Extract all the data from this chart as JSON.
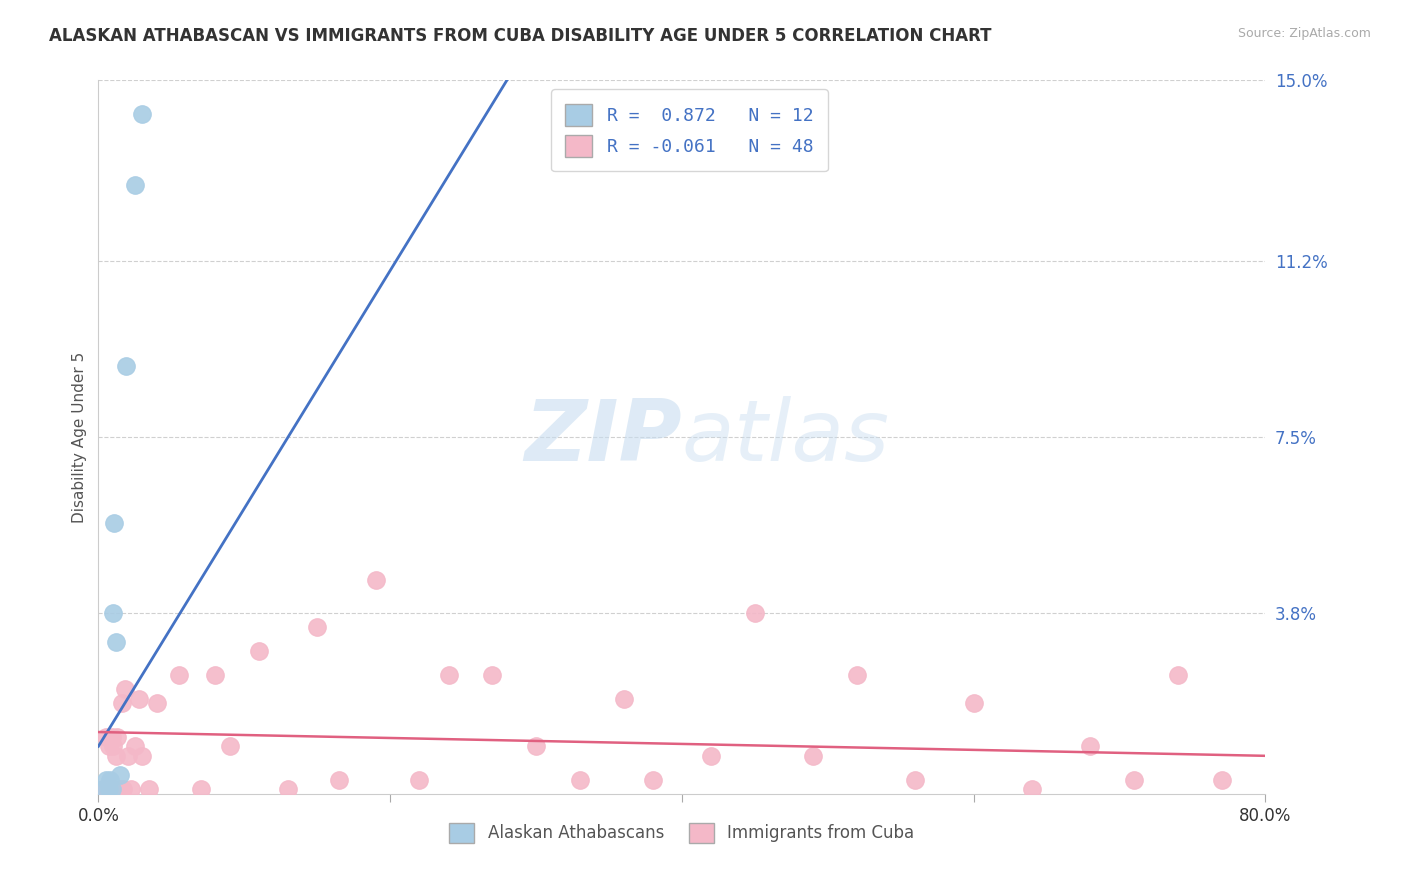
{
  "title": "ALASKAN ATHABASCAN VS IMMIGRANTS FROM CUBA DISABILITY AGE UNDER 5 CORRELATION CHART",
  "source": "Source: ZipAtlas.com",
  "ylabel": "Disability Age Under 5",
  "xlim": [
    0,
    0.8
  ],
  "ylim": [
    0,
    0.15
  ],
  "ytick_labels": [
    "3.8%",
    "7.5%",
    "11.2%",
    "15.0%"
  ],
  "ytick_vals": [
    0.038,
    0.075,
    0.112,
    0.15
  ],
  "blue_color": "#a8cce4",
  "pink_color": "#f4b8c8",
  "blue_line_color": "#4472c4",
  "pink_line_color": "#e06080",
  "legend_r_blue": "0.872",
  "legend_n_blue": "12",
  "legend_r_pink": "-0.061",
  "legend_n_pink": "48",
  "blue_scatter_x": [
    0.003,
    0.005,
    0.007,
    0.008,
    0.009,
    0.01,
    0.011,
    0.012,
    0.015,
    0.019,
    0.025,
    0.03
  ],
  "blue_scatter_y": [
    0.001,
    0.003,
    0.001,
    0.003,
    0.001,
    0.038,
    0.057,
    0.032,
    0.004,
    0.09,
    0.128,
    0.143
  ],
  "blue_line_x": [
    0.0,
    0.29
  ],
  "blue_line_y": [
    0.01,
    0.155
  ],
  "pink_line_x": [
    0.0,
    0.8
  ],
  "pink_line_y": [
    0.013,
    0.008
  ],
  "pink_scatter_x": [
    0.003,
    0.005,
    0.006,
    0.007,
    0.008,
    0.009,
    0.01,
    0.011,
    0.012,
    0.013,
    0.015,
    0.016,
    0.017,
    0.018,
    0.02,
    0.022,
    0.025,
    0.028,
    0.03,
    0.035,
    0.04,
    0.055,
    0.07,
    0.08,
    0.09,
    0.11,
    0.13,
    0.15,
    0.165,
    0.19,
    0.22,
    0.24,
    0.27,
    0.3,
    0.33,
    0.36,
    0.38,
    0.42,
    0.45,
    0.49,
    0.52,
    0.56,
    0.6,
    0.64,
    0.68,
    0.71,
    0.74,
    0.77
  ],
  "pink_scatter_y": [
    0.001,
    0.012,
    0.001,
    0.01,
    0.001,
    0.012,
    0.01,
    0.001,
    0.008,
    0.012,
    0.001,
    0.019,
    0.001,
    0.022,
    0.008,
    0.001,
    0.01,
    0.02,
    0.008,
    0.001,
    0.019,
    0.025,
    0.001,
    0.025,
    0.01,
    0.03,
    0.001,
    0.035,
    0.003,
    0.045,
    0.003,
    0.025,
    0.025,
    0.01,
    0.003,
    0.02,
    0.003,
    0.008,
    0.038,
    0.008,
    0.025,
    0.003,
    0.019,
    0.001,
    0.01,
    0.003,
    0.025,
    0.003
  ],
  "watermark_zip": "ZIP",
  "watermark_atlas": "atlas",
  "background_color": "#ffffff",
  "grid_color": "#d0d0d0"
}
